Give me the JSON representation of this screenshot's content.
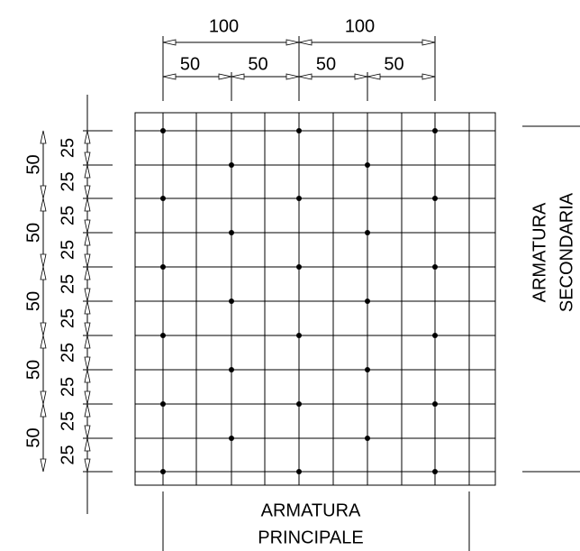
{
  "top_dimensions": {
    "major": [
      "100",
      "100"
    ],
    "minor": [
      "50",
      "50",
      "50",
      "50"
    ]
  },
  "left_dimensions": {
    "major": [
      "50",
      "50",
      "50",
      "50",
      "50"
    ],
    "minor": [
      "25",
      "25",
      "25",
      "25",
      "25",
      "25",
      "25",
      "25",
      "25",
      "25"
    ]
  },
  "labels": {
    "secondary": [
      "ARMATURA",
      "SECONDARIA"
    ],
    "principal": [
      "ARMATURA",
      "PRINCIPALE"
    ]
  }
}
